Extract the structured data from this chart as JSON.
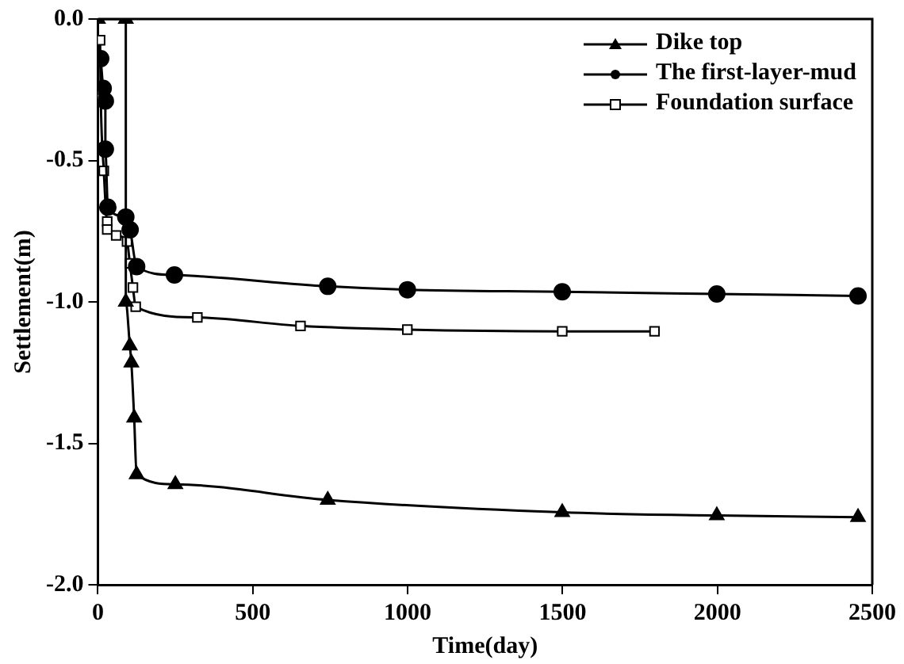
{
  "chart_data": {
    "type": "line",
    "xlabel": "Time(day)",
    "ylabel": "Settlement(m)",
    "xlim": [
      0,
      2500
    ],
    "xticks": [
      0,
      500,
      1000,
      1500,
      2000,
      2500
    ],
    "ylim": [
      -2.0,
      0.0
    ],
    "yticks": [
      {
        "value": 0,
        "label": "0.0"
      },
      {
        "value": -0.5,
        "label": "-0.5"
      },
      {
        "value": -1,
        "label": "-1.0"
      },
      {
        "value": -1.5,
        "label": "-1.5"
      },
      {
        "value": -2,
        "label": "-2.0"
      }
    ],
    "grid": false,
    "legend": "top right",
    "line_style": "solid",
    "series": [
      {
        "name": "Dike top",
        "color": "#000000",
        "marker": "triangle",
        "x": [
          0,
          90,
          90,
          103,
          108,
          117,
          125,
          250,
          742,
          1499,
          1998,
          2454
        ],
        "values": [
          0,
          0,
          -1.0,
          -1.155,
          -1.215,
          -1.41,
          -1.61,
          -1.645,
          -1.7,
          -1.744,
          -1.755,
          -1.761
        ]
      },
      {
        "name": "The first-layer-mud",
        "color": "#000000",
        "marker": "circle",
        "x": [
          9,
          17,
          24,
          24,
          32,
          90,
          104,
          125,
          247,
          742,
          999,
          1499,
          1998,
          2454
        ],
        "values": [
          -0.14,
          -0.245,
          -0.29,
          -0.46,
          -0.665,
          -0.7,
          -0.745,
          -0.875,
          -0.905,
          -0.945,
          -0.957,
          -0.964,
          -0.972,
          -0.979
        ]
      },
      {
        "name": "Foundation surface",
        "color": "#000000",
        "marker": "square",
        "x": [
          7,
          9,
          19,
          30,
          30,
          59,
          94,
          103,
          113,
          122,
          321,
          654,
          999,
          1499,
          1797
        ],
        "values": [
          -0.075,
          -0.27,
          -0.537,
          -0.716,
          -0.744,
          -0.765,
          -0.787,
          -0.864,
          -0.949,
          -1.017,
          -1.055,
          -1.085,
          -1.098,
          -1.104,
          -1.104
        ]
      }
    ]
  }
}
